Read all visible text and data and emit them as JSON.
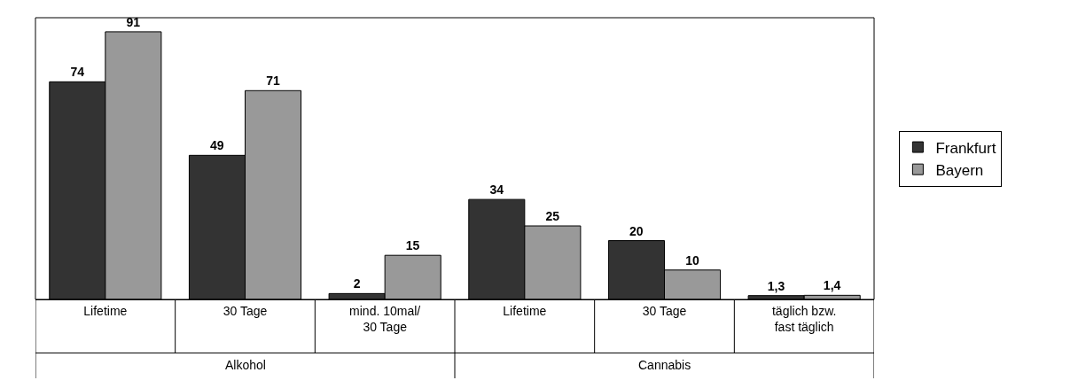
{
  "chart_data": {
    "type": "bar",
    "categories": [
      "Lifetime",
      "30 Tage",
      "mind. 10mal/ 30 Tage",
      "Lifetime",
      "30 Tage",
      "täglich bzw. fast täglich"
    ],
    "series": [
      {
        "name": "Frankfurt",
        "color": "#333333",
        "values": [
          74,
          49,
          2,
          34,
          20,
          1.3
        ],
        "value_labels": [
          "74",
          "49",
          "2",
          "34",
          "20",
          "1,3"
        ]
      },
      {
        "name": "Bayern",
        "color": "#999999",
        "values": [
          91,
          71,
          15,
          25,
          10,
          1.4
        ],
        "value_labels": [
          "91",
          "71",
          "15",
          "25",
          "10",
          "1,4"
        ]
      }
    ],
    "legend": "right",
    "annotations": [
      "Alkohol",
      "Cannabis"
    ]
  }
}
